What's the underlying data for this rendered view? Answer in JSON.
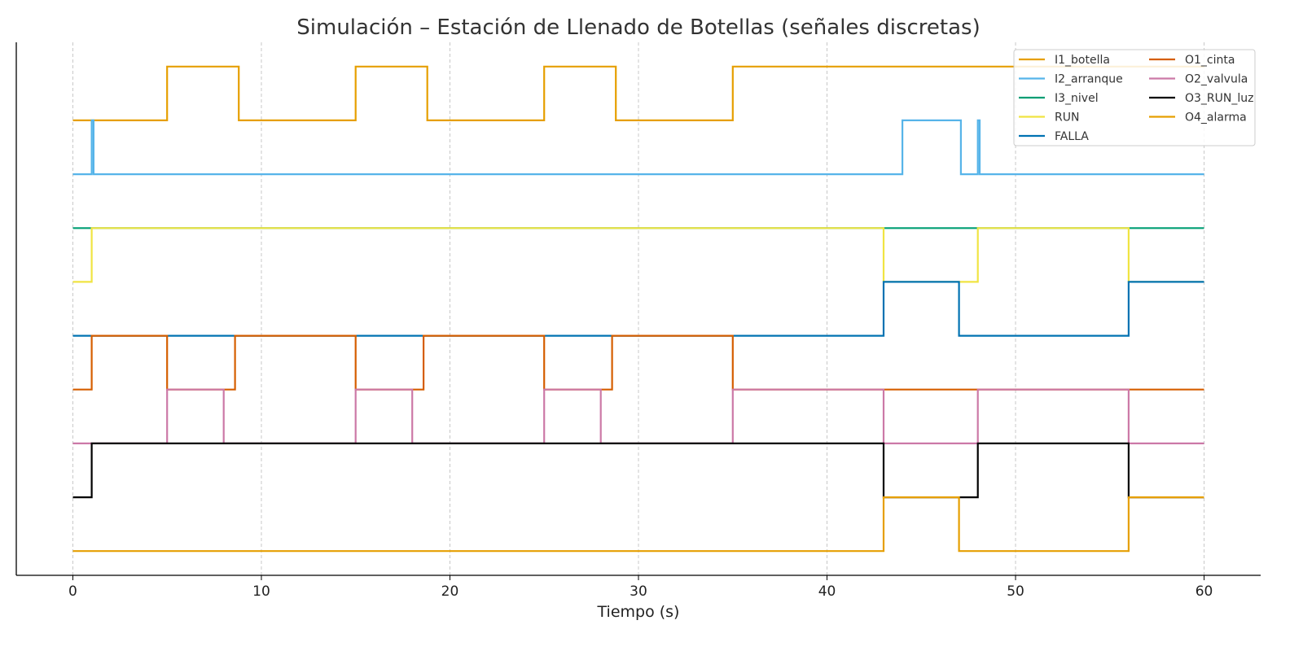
{
  "chart_data": {
    "type": "line",
    "step": "post",
    "title": "Simulación – Estación de Llenado de Botellas (señales discretas)",
    "xlabel": "Tiempo (s)",
    "ylabel": "",
    "xlim": [
      -3,
      63
    ],
    "ylim": [
      -0.45,
      9.45
    ],
    "xticks": [
      0,
      10,
      20,
      30,
      40,
      50,
      60
    ],
    "yticks": [],
    "grid": "x dashed",
    "legend": {
      "placement": "top-right",
      "columns": 2
    },
    "series": [
      {
        "name": "I1_botella",
        "color": "#E69F00",
        "offset": 8,
        "initial": 0,
        "changes": [
          [
            5,
            1
          ],
          [
            8.8,
            0
          ],
          [
            15,
            1
          ],
          [
            18.8,
            0
          ],
          [
            25,
            1
          ],
          [
            28.8,
            0
          ],
          [
            35,
            1
          ]
        ]
      },
      {
        "name": "I2_arranque",
        "color": "#56B4E9",
        "offset": 7,
        "initial": 0,
        "changes": [
          [
            1,
            1
          ],
          [
            1.1,
            0
          ],
          [
            44,
            1
          ],
          [
            47.1,
            0
          ],
          [
            48,
            1
          ],
          [
            48.1,
            0
          ]
        ]
      },
      {
        "name": "I3_nivel",
        "color": "#009E73",
        "offset": 6,
        "initial": 0,
        "changes": []
      },
      {
        "name": "RUN",
        "color": "#F0E442",
        "offset": 5,
        "initial": 0,
        "changes": [
          [
            1,
            1
          ],
          [
            43,
            0
          ],
          [
            48,
            1
          ],
          [
            56,
            0
          ]
        ]
      },
      {
        "name": "FALLA",
        "color": "#0072B2",
        "offset": 4,
        "initial": 0,
        "changes": [
          [
            43,
            1
          ],
          [
            47,
            0
          ],
          [
            56,
            1
          ]
        ]
      },
      {
        "name": "O1_cinta",
        "color": "#D55E00",
        "offset": 3,
        "initial": 0,
        "changes": [
          [
            1,
            1
          ],
          [
            5,
            0
          ],
          [
            8.6,
            1
          ],
          [
            15,
            0
          ],
          [
            18.6,
            1
          ],
          [
            25,
            0
          ],
          [
            28.6,
            1
          ],
          [
            35,
            0
          ]
        ]
      },
      {
        "name": "O2_valvula",
        "color": "#CC79A7",
        "offset": 2,
        "initial": 0,
        "changes": [
          [
            5,
            1
          ],
          [
            8,
            0
          ],
          [
            15,
            1
          ],
          [
            18,
            0
          ],
          [
            25,
            1
          ],
          [
            28,
            0
          ],
          [
            35,
            1
          ],
          [
            43,
            0
          ],
          [
            48,
            1
          ],
          [
            56,
            0
          ]
        ]
      },
      {
        "name": "O3_RUN_luz",
        "color": "#000000",
        "offset": 1,
        "initial": 0,
        "changes": [
          [
            1,
            1
          ],
          [
            43,
            0
          ],
          [
            48,
            1
          ],
          [
            56,
            0
          ]
        ]
      },
      {
        "name": "O4_alarma",
        "color": "#E69F00",
        "offset": 0,
        "initial": 0,
        "changes": [
          [
            43,
            1
          ],
          [
            47,
            0
          ],
          [
            56,
            1
          ]
        ]
      }
    ],
    "x_end": 60
  }
}
